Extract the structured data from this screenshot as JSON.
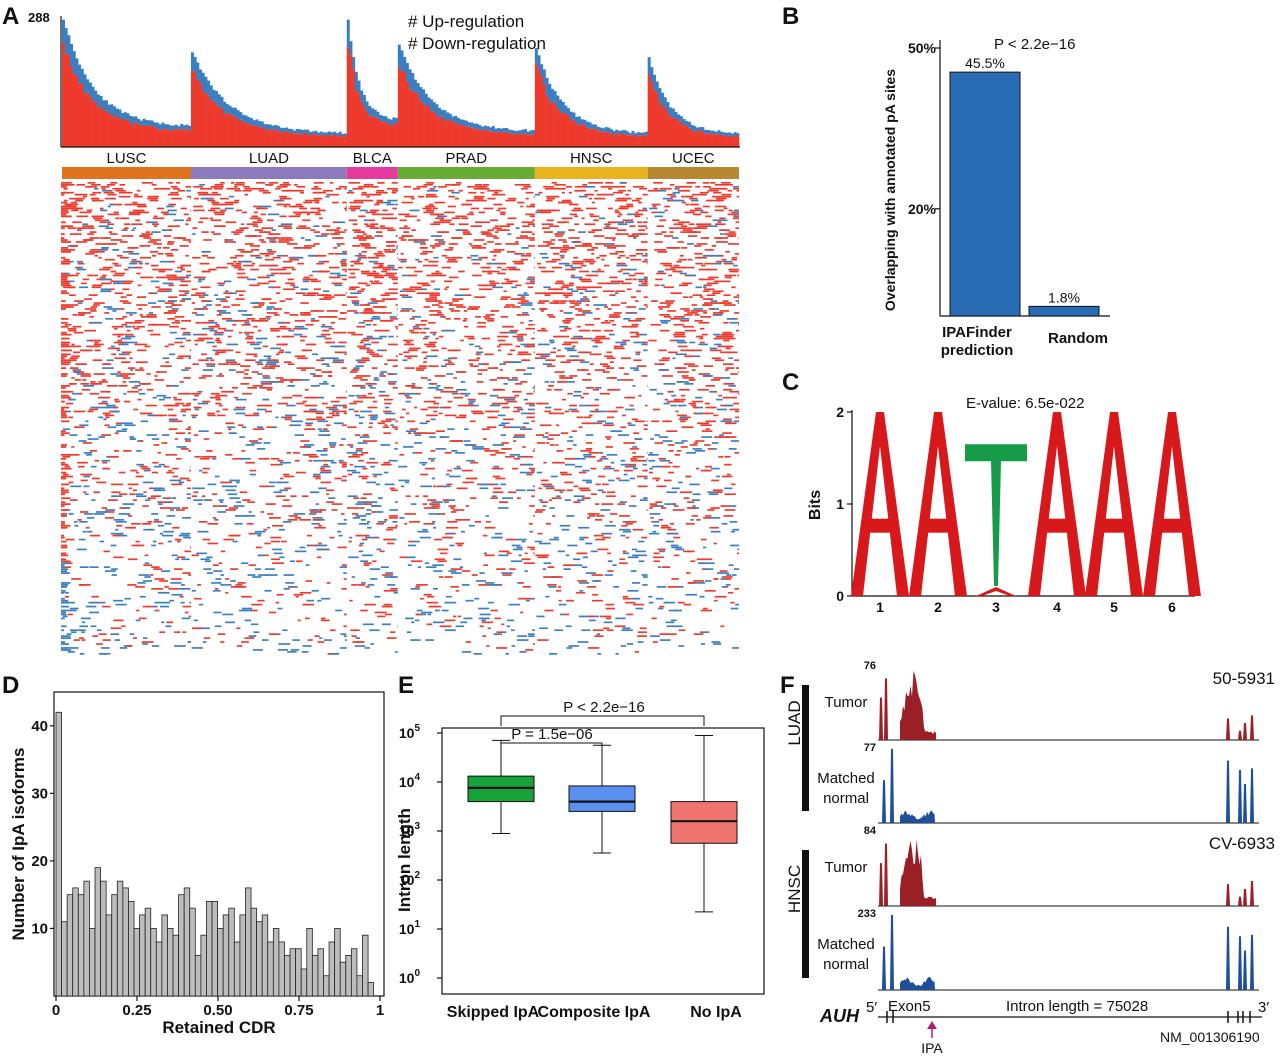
{
  "panels": {
    "A": {
      "label": "A",
      "ymax_label": "288",
      "legend": {
        "up": "# Up-regulation",
        "down": "# Down-regulation"
      },
      "colors": {
        "up": "#ee3a2c",
        "down": "#3a7fc1"
      },
      "chart_data": {
        "type": "bar",
        "ymax": 288,
        "groups": [
          {
            "name": "LUSC",
            "color": "#e0741e",
            "n": 48,
            "peak": 280,
            "tail": 40
          },
          {
            "name": "LUAD",
            "color": "#8b7bbd",
            "n": 58,
            "peak": 205,
            "tail": 25
          },
          {
            "name": "BLCA",
            "color": "#e4399d",
            "n": 19,
            "peak": 275,
            "tail": 55
          },
          {
            "name": "PRAD",
            "color": "#6aab33",
            "n": 51,
            "peak": 225,
            "tail": 30
          },
          {
            "name": "HNSC",
            "color": "#e9b21f",
            "n": 42,
            "peak": 215,
            "tail": 25
          },
          {
            "name": "UCEC",
            "color": "#b6882f",
            "n": 34,
            "peak": 195,
            "tail": 25
          }
        ]
      }
    },
    "B": {
      "label": "B",
      "ylabel": "Overlapping with annotated  pA sites",
      "pvalue": "P < 2.2e−16",
      "chart_data": {
        "type": "bar",
        "categories": [
          "IPAFinder prediction",
          "Random"
        ],
        "category_lines": [
          [
            "IPAFinder",
            "prediction"
          ],
          [
            "Random"
          ]
        ],
        "values": [
          45.5,
          1.8
        ],
        "value_labels": [
          "45.5%",
          "1.8%"
        ],
        "ylim": [
          0,
          50
        ],
        "yticks": [
          20,
          50
        ],
        "ytick_labels": [
          "20%",
          "50%"
        ],
        "color": "#2a6cb3"
      }
    },
    "C": {
      "label": "C",
      "evalue": "E-value: 6.5e-022",
      "ylabel": "Bits",
      "chart_data": {
        "type": "bar",
        "positions": [
          1,
          2,
          3,
          4,
          5,
          6
        ],
        "letters": [
          "A",
          "A",
          "T",
          "A",
          "A",
          "A"
        ],
        "bits": [
          2.0,
          2.0,
          1.65,
          2.0,
          2.0,
          2.0
        ],
        "ylim": [
          0,
          2
        ],
        "yticks": [
          0,
          1,
          2
        ],
        "colors": {
          "A": "#d7191c",
          "T": "#169b48"
        }
      }
    },
    "D": {
      "label": "D",
      "ylabel": "Number of IpA isoforms",
      "xlabel": "Retained CDR",
      "chart_data": {
        "type": "bar",
        "bin_width": 0.02,
        "values": [
          42,
          11,
          15,
          16,
          15,
          17,
          10,
          19,
          17,
          12,
          15,
          17,
          16,
          14,
          10,
          12,
          13,
          10,
          8,
          12,
          10,
          9,
          15,
          16,
          13,
          6,
          9,
          14,
          14,
          10,
          12,
          13,
          8,
          12,
          16,
          13,
          11,
          12,
          8,
          10,
          8,
          6,
          7,
          7,
          4,
          10,
          6,
          7,
          3,
          8,
          10,
          5,
          6,
          7,
          3,
          9,
          2
        ],
        "ylim": [
          0,
          45
        ],
        "yticks": [
          10,
          20,
          30,
          40
        ],
        "xticks": [
          0,
          0.25,
          0.5,
          0.75,
          1
        ],
        "xtick_labels": [
          "0",
          "0.25",
          "0.50",
          "0.75",
          "1"
        ],
        "color": "#bdbdbd"
      }
    },
    "E": {
      "label": "E",
      "ylabel": "Intron length",
      "p1": "P = 1.5e−06",
      "p2": "P < 2.2e−16",
      "tick_base": "10",
      "chart_data": {
        "type": "box",
        "categories": [
          "Skipped IpA",
          "Composite IpA",
          "No IpA"
        ],
        "log10_whisker_low": [
          2.95,
          2.55,
          1.35
        ],
        "log10_q1": [
          3.6,
          3.4,
          2.75
        ],
        "log10_median": [
          3.88,
          3.6,
          3.2
        ],
        "log10_q3": [
          4.12,
          3.92,
          3.6
        ],
        "log10_whisker_high": [
          4.85,
          4.75,
          4.95
        ],
        "colors": [
          "#18a33a",
          "#5b8ff0",
          "#f07470"
        ],
        "yticks_exp": [
          0,
          1,
          2,
          3,
          4,
          5
        ]
      }
    },
    "F": {
      "label": "F",
      "groups": [
        "LUAD",
        "HNSC"
      ],
      "tracks": [
        {
          "name": "Tumor",
          "scale": "76",
          "sample": "50-5931",
          "color": "#9b1f27"
        },
        {
          "name": "Matched normal",
          "lines": [
            "Matched",
            "normal"
          ],
          "scale": "77",
          "color": "#1f4e9b"
        },
        {
          "name": "Tumor",
          "scale": "84",
          "sample": "CV-6933",
          "color": "#9b1f27"
        },
        {
          "name": "Matched normal",
          "lines": [
            "Matched",
            "normal"
          ],
          "scale": "233",
          "color": "#1f4e9b"
        }
      ],
      "gene": "AUH",
      "five_prime": "5′",
      "three_prime": "3′",
      "exon": "Exon5",
      "intron_text": "Intron length = 75028",
      "transcript": "NM_001306190",
      "ipa": "IPA",
      "ipa_color": "#b0217a"
    }
  }
}
